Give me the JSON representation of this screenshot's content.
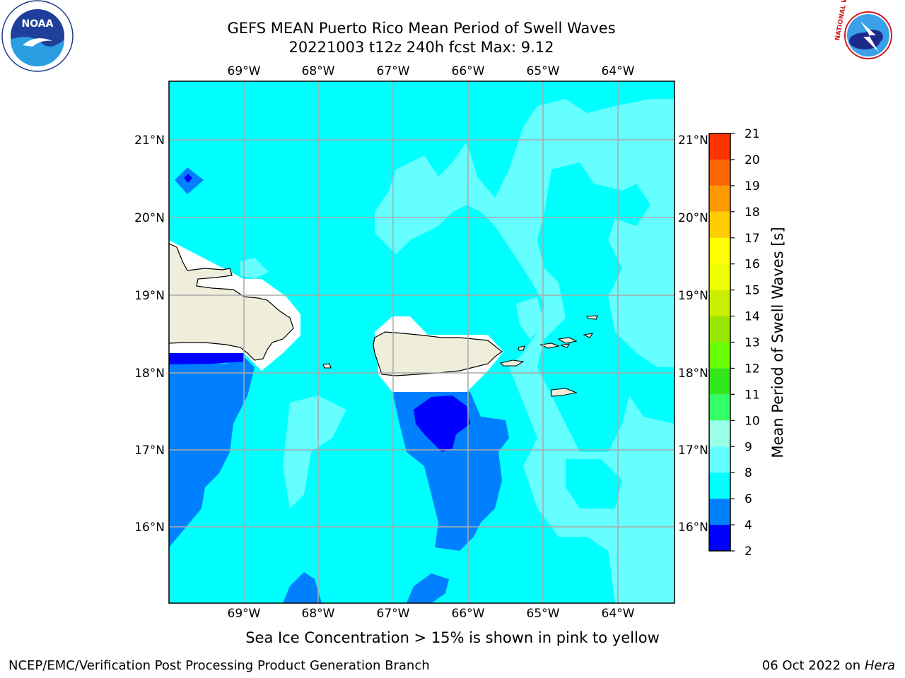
{
  "header": {
    "title_line1": "GEFS MEAN Puerto Rico Mean Period of Swell Waves",
    "title_line2": "20221003 t12z 240h fcst   Max: 9.12"
  },
  "map": {
    "lon_ticks": [
      "69°W",
      "68°W",
      "67°W",
      "66°W",
      "65°W",
      "64°W"
    ],
    "lat_ticks": [
      "21°N",
      "20°N",
      "19°N",
      "18°N",
      "17°N",
      "16°N"
    ],
    "land_color": "#efeedb",
    "sea_color": "#00ffff"
  },
  "colorbar": {
    "label": "Mean Period of Swell Waves [s]",
    "ticks": [
      "2",
      "4",
      "6",
      "8",
      "9",
      "10",
      "11",
      "12",
      "13",
      "14",
      "15",
      "16",
      "17",
      "18",
      "19",
      "20",
      "21"
    ],
    "colors": [
      "#0000ff",
      "#0080ff",
      "#00ffff",
      "#66ffff",
      "#99ffe6",
      "#33ff66",
      "#33e61a",
      "#66ff00",
      "#99e600",
      "#ccee00",
      "#eeff00",
      "#ffff00",
      "#ffcc00",
      "#ff9900",
      "#ff6600",
      "#ff3300",
      "#ff0000"
    ]
  },
  "note": "Sea Ice Concentration > 15% is shown in pink to yellow",
  "footer": {
    "left": "NCEP/EMC/Verification Post Processing Product Generation Branch",
    "right_date": "06 Oct 2022 on ",
    "right_host": "Hera"
  },
  "logos": {
    "noaa_text": "NOAA",
    "nws_text": "NATIONAL WEATHER SERVICE"
  }
}
